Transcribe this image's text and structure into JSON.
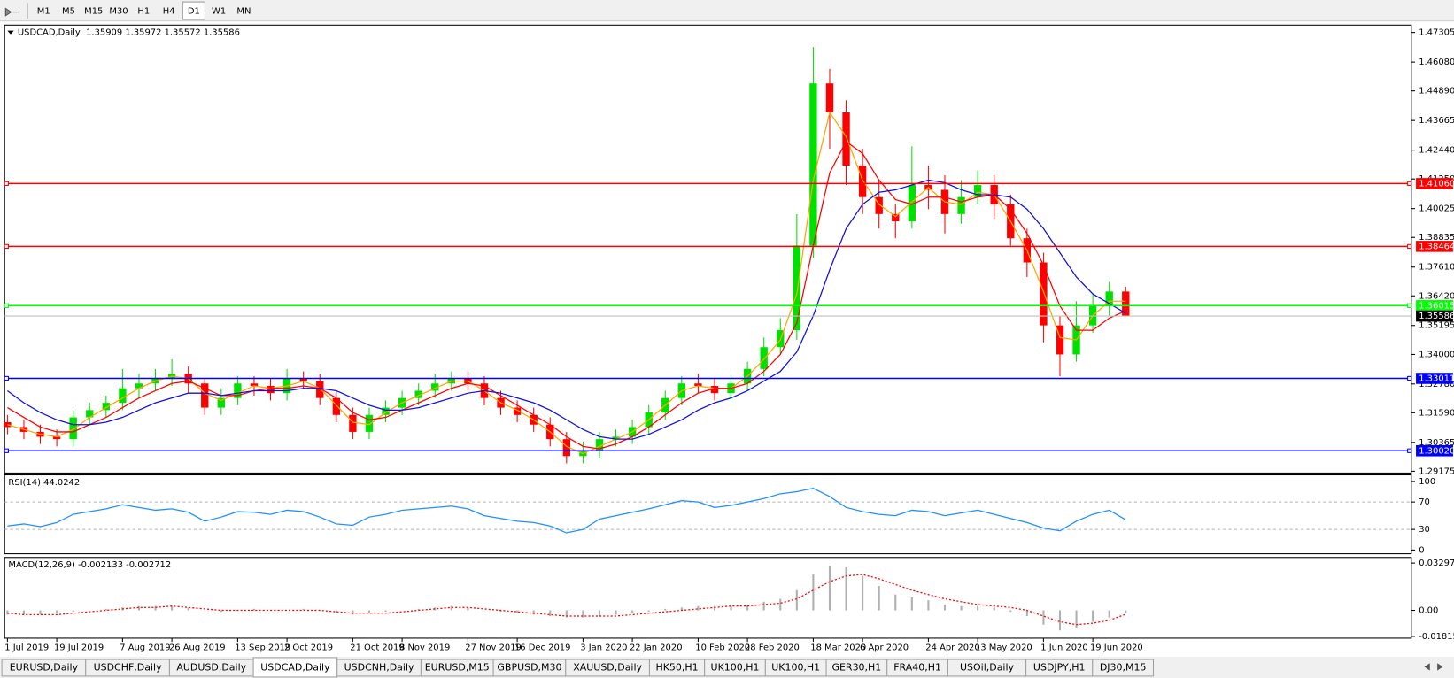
{
  "toolbar": {
    "timeframes": [
      "M1",
      "M5",
      "M15",
      "M30",
      "H1",
      "H4",
      "D1",
      "W1",
      "MN"
    ],
    "active_index": 6
  },
  "tabs": [
    "EURUSD,Daily",
    "USDCHF,Daily",
    "AUDUSD,Daily",
    "USDCAD,Daily",
    "USDCNH,Daily",
    "EURUSD,M15",
    "GBPUSD,M30",
    "XAUUSD,Daily",
    "HK50,H1",
    "UK100,H1",
    "UK100,H1",
    "GER30,H1",
    "FRA40,H1",
    "USOil,Daily",
    "USDJPY,H1",
    "DJ30,M15"
  ],
  "active_tab_index": 3,
  "chart_data": [
    {
      "type": "candlestick",
      "title": "USDCAD,Daily  1.35909 1.35972 1.35572 1.35586",
      "categories": [
        "1 Jul 2019",
        null,
        null,
        "19 Jul 2019",
        null,
        null,
        null,
        "7 Aug 2019",
        null,
        null,
        "26 Aug 2019",
        null,
        null,
        null,
        "13 Sep 2019",
        null,
        null,
        "2 Oct 2019",
        null,
        null,
        null,
        "21 Oct 2019",
        null,
        null,
        "8 Nov 2019",
        null,
        null,
        null,
        "27 Nov 2019",
        null,
        null,
        "16 Dec 2019",
        null,
        null,
        null,
        "3 Jan 2020",
        null,
        null,
        "22 Jan 2020",
        null,
        null,
        null,
        "10 Feb 2020",
        null,
        null,
        "28 Feb 2020",
        null,
        null,
        null,
        "18 Mar 2020",
        null,
        null,
        "6 Apr 2020",
        null,
        null,
        null,
        "24 Apr 2020",
        null,
        null,
        "13 May 2020",
        null,
        null,
        null,
        "1 Jun 2020",
        null,
        null,
        "19 Jun 2020",
        null,
        null
      ],
      "open": [
        1.312,
        1.31,
        1.308,
        1.306,
        1.305,
        1.314,
        1.317,
        1.32,
        1.326,
        1.328,
        1.33,
        1.332,
        1.328,
        1.318,
        1.322,
        1.328,
        1.327,
        1.324,
        1.33,
        1.329,
        1.322,
        1.315,
        1.308,
        1.315,
        1.318,
        1.322,
        1.325,
        1.328,
        1.33,
        1.328,
        1.322,
        1.318,
        1.315,
        1.311,
        1.305,
        1.298,
        1.3,
        1.305,
        1.306,
        1.31,
        1.316,
        1.322,
        1.328,
        1.327,
        1.324,
        1.328,
        1.334,
        1.343,
        1.35,
        1.385,
        1.452,
        1.44,
        1.418,
        1.405,
        1.398,
        1.395,
        1.41,
        1.408,
        1.398,
        1.405,
        1.41,
        1.402,
        1.388,
        1.378,
        1.352,
        1.34,
        1.352,
        1.36,
        1.366
      ],
      "high": [
        1.315,
        1.313,
        1.311,
        1.309,
        1.317,
        1.32,
        1.323,
        1.334,
        1.332,
        1.334,
        1.338,
        1.335,
        1.33,
        1.326,
        1.331,
        1.331,
        1.33,
        1.334,
        1.333,
        1.332,
        1.325,
        1.318,
        1.318,
        1.321,
        1.325,
        1.328,
        1.332,
        1.333,
        1.333,
        1.331,
        1.325,
        1.321,
        1.318,
        1.314,
        1.308,
        1.304,
        1.308,
        1.309,
        1.313,
        1.319,
        1.325,
        1.331,
        1.332,
        1.33,
        1.331,
        1.337,
        1.347,
        1.355,
        1.398,
        1.467,
        1.458,
        1.445,
        1.425,
        1.412,
        1.402,
        1.426,
        1.418,
        1.414,
        1.412,
        1.416,
        1.414,
        1.406,
        1.392,
        1.382,
        1.356,
        1.362,
        1.365,
        1.37,
        1.368
      ],
      "low": [
        1.307,
        1.305,
        1.303,
        1.302,
        1.302,
        1.311,
        1.314,
        1.317,
        1.322,
        1.325,
        1.327,
        1.324,
        1.315,
        1.315,
        1.319,
        1.323,
        1.321,
        1.321,
        1.326,
        1.319,
        1.312,
        1.305,
        1.305,
        1.312,
        1.315,
        1.319,
        1.322,
        1.325,
        1.325,
        1.319,
        1.315,
        1.312,
        1.308,
        1.302,
        1.295,
        1.295,
        1.297,
        1.302,
        1.303,
        1.307,
        1.313,
        1.319,
        1.324,
        1.321,
        1.321,
        1.325,
        1.331,
        1.34,
        1.346,
        1.38,
        1.425,
        1.41,
        1.398,
        1.392,
        1.388,
        1.392,
        1.4,
        1.39,
        1.394,
        1.402,
        1.396,
        1.385,
        1.372,
        1.345,
        1.331,
        1.337,
        1.349,
        1.356,
        1.35572
      ],
      "close": [
        1.31,
        1.308,
        1.306,
        1.305,
        1.314,
        1.317,
        1.32,
        1.326,
        1.328,
        1.33,
        1.332,
        1.328,
        1.318,
        1.322,
        1.328,
        1.327,
        1.324,
        1.33,
        1.329,
        1.322,
        1.315,
        1.308,
        1.315,
        1.318,
        1.322,
        1.325,
        1.328,
        1.33,
        1.328,
        1.322,
        1.318,
        1.315,
        1.311,
        1.305,
        1.298,
        1.3,
        1.305,
        1.306,
        1.31,
        1.316,
        1.322,
        1.328,
        1.327,
        1.324,
        1.328,
        1.334,
        1.343,
        1.35,
        1.385,
        1.452,
        1.44,
        1.418,
        1.405,
        1.398,
        1.395,
        1.41,
        1.408,
        1.398,
        1.405,
        1.41,
        1.402,
        1.388,
        1.378,
        1.352,
        1.34,
        1.352,
        1.36,
        1.366,
        1.35586
      ],
      "up_color": "#00e000",
      "down_color": "#ff0000",
      "series": [
        {
          "color": "#ffa500",
          "values": [
            1.311,
            1.309,
            1.307,
            1.306,
            1.309,
            1.314,
            1.318,
            1.322,
            1.326,
            1.329,
            1.331,
            1.33,
            1.324,
            1.321,
            1.324,
            1.327,
            1.326,
            1.327,
            1.329,
            1.326,
            1.319,
            1.312,
            1.311,
            1.316,
            1.32,
            1.323,
            1.326,
            1.329,
            1.329,
            1.325,
            1.32,
            1.317,
            1.313,
            1.308,
            1.302,
            1.299,
            1.302,
            1.305,
            1.308,
            1.313,
            1.319,
            1.325,
            1.327,
            1.326,
            1.326,
            1.331,
            1.338,
            1.346,
            1.365,
            1.412,
            1.44,
            1.43,
            1.412,
            1.402,
            1.397,
            1.403,
            1.409,
            1.403,
            1.402,
            1.407,
            1.406,
            1.395,
            1.383,
            1.366,
            1.347,
            1.346,
            1.356,
            1.362,
            1.362
          ]
        },
        {
          "color": "#ff0000",
          "values": [
            1.318,
            1.314,
            1.31,
            1.308,
            1.308,
            1.311,
            1.314,
            1.318,
            1.322,
            1.325,
            1.328,
            1.329,
            1.326,
            1.323,
            1.323,
            1.325,
            1.326,
            1.326,
            1.327,
            1.326,
            1.322,
            1.316,
            1.313,
            1.314,
            1.317,
            1.32,
            1.323,
            1.326,
            1.328,
            1.327,
            1.323,
            1.319,
            1.315,
            1.311,
            1.306,
            1.302,
            1.301,
            1.303,
            1.306,
            1.31,
            1.315,
            1.32,
            1.324,
            1.326,
            1.326,
            1.328,
            1.333,
            1.34,
            1.353,
            1.385,
            1.415,
            1.428,
            1.423,
            1.412,
            1.404,
            1.402,
            1.405,
            1.405,
            1.403,
            1.405,
            1.406,
            1.4,
            1.39,
            1.377,
            1.36,
            1.35,
            1.35,
            1.355,
            1.358
          ]
        },
        {
          "color": "#1010e0",
          "values": [
            1.325,
            1.32,
            1.316,
            1.313,
            1.311,
            1.311,
            1.312,
            1.314,
            1.317,
            1.32,
            1.322,
            1.324,
            1.324,
            1.323,
            1.324,
            1.325,
            1.325,
            1.325,
            1.326,
            1.326,
            1.325,
            1.322,
            1.319,
            1.317,
            1.317,
            1.318,
            1.32,
            1.322,
            1.324,
            1.325,
            1.324,
            1.322,
            1.32,
            1.317,
            1.313,
            1.309,
            1.306,
            1.305,
            1.305,
            1.307,
            1.31,
            1.313,
            1.317,
            1.32,
            1.322,
            1.325,
            1.329,
            1.333,
            1.341,
            1.356,
            1.375,
            1.392,
            1.402,
            1.407,
            1.408,
            1.41,
            1.412,
            1.411,
            1.408,
            1.406,
            1.406,
            1.405,
            1.4,
            1.392,
            1.382,
            1.372,
            1.365,
            1.361,
            1.357
          ]
        }
      ],
      "ylim": [
        1.291,
        1.4761
      ],
      "yticks": [
        1.47305,
        {
          "value": 1.4608,
          "label": "1.46080"
        },
        {
          "value": 1.4489,
          "label": "1.44890"
        },
        1.43665,
        {
          "value": 1.4244,
          "label": "1.42440"
        },
        {
          "value": 1.4125,
          "label": "1.41250"
        },
        1.40025,
        1.38835,
        {
          "value": 1.3761,
          "label": "1.37610"
        },
        {
          "value": 1.3642,
          "label": "1.36420"
        },
        1.35195,
        {
          "value": 1.34,
          "label": "1.34000"
        },
        {
          "value": 1.3278,
          "label": "1.32780"
        },
        {
          "value": 1.3159,
          "label": "1.31590"
        },
        1.30365,
        1.29175
      ],
      "hlines": [
        {
          "value": 1.4106,
          "label": "1.41060",
          "color": "#ff0000"
        },
        {
          "value": 1.38464,
          "label": "1.38464",
          "color": "#ff0000"
        },
        {
          "value": 1.36015,
          "label": "1.36015",
          "color": "#00ff00"
        },
        {
          "value": 1.33011,
          "label": "1.33011",
          "color": "#0000ff"
        },
        {
          "value": 1.3002,
          "label": "1.30020",
          "color": "#0000ff"
        }
      ],
      "last": {
        "value": 1.35586,
        "color": "#c0c0c0"
      }
    },
    {
      "type": "line",
      "title": "RSI(14) 44.0242",
      "series": [
        {
          "color": "#1e90ff",
          "values": [
            35,
            38,
            34,
            40,
            52,
            56,
            60,
            66,
            62,
            58,
            60,
            55,
            42,
            48,
            56,
            55,
            52,
            58,
            56,
            48,
            38,
            36,
            48,
            52,
            58,
            60,
            62,
            64,
            60,
            50,
            46,
            42,
            40,
            35,
            25,
            30,
            45,
            50,
            55,
            60,
            66,
            72,
            70,
            62,
            65,
            70,
            75,
            82,
            85,
            90,
            78,
            62,
            56,
            52,
            50,
            58,
            56,
            50,
            54,
            58,
            52,
            46,
            40,
            32,
            28,
            42,
            52,
            58,
            44.0242
          ]
        }
      ],
      "ylim": [
        -5.4,
        109.5
      ],
      "yticks": [
        100,
        70,
        30,
        0
      ],
      "levels": [
        70,
        30
      ]
    },
    {
      "type": "bar",
      "title": "MACD(12,26,9) -0.002133 -0.002712",
      "series": [
        {
          "type": "bar",
          "color": "#b0b0b0",
          "values": [
            -0.003,
            -0.003,
            -0.003,
            -0.002,
            -0.001,
            0.0,
            0.001,
            0.002,
            0.003,
            0.003,
            0.003,
            0.002,
            0.0,
            -0.001,
            0.0,
            0.001,
            0.0,
            0.0,
            0.001,
            0.0,
            -0.002,
            -0.003,
            -0.002,
            -0.001,
            0.0,
            0.001,
            0.002,
            0.003,
            0.002,
            0.0,
            -0.001,
            -0.002,
            -0.003,
            -0.004,
            -0.005,
            -0.005,
            -0.004,
            -0.003,
            -0.002,
            -0.001,
            0.001,
            0.002,
            0.003,
            0.003,
            0.003,
            0.004,
            0.006,
            0.008,
            0.014,
            0.025,
            0.031,
            0.03,
            0.024,
            0.017,
            0.011,
            0.009,
            0.007,
            0.004,
            0.003,
            0.003,
            0.002,
            -0.001,
            -0.004,
            -0.01,
            -0.014,
            -0.012,
            -0.008,
            -0.005,
            -0.002133
          ]
        },
        {
          "type": "line",
          "color": "#ff0000",
          "dashed": true,
          "values": [
            -0.002,
            -0.003,
            -0.003,
            -0.003,
            -0.002,
            -0.001,
            0.0,
            0.001,
            0.002,
            0.002,
            0.003,
            0.002,
            0.001,
            0.0,
            0.0,
            0.0,
            0.0,
            0.0,
            0.0,
            0.0,
            -0.001,
            -0.002,
            -0.002,
            -0.002,
            -0.001,
            0.0,
            0.001,
            0.002,
            0.002,
            0.001,
            0.0,
            -0.001,
            -0.002,
            -0.003,
            -0.004,
            -0.004,
            -0.004,
            -0.004,
            -0.003,
            -0.002,
            -0.001,
            0.0,
            0.001,
            0.002,
            0.003,
            0.003,
            0.004,
            0.005,
            0.008,
            0.014,
            0.02,
            0.024,
            0.025,
            0.022,
            0.018,
            0.014,
            0.011,
            0.008,
            0.006,
            0.004,
            0.003,
            0.002,
            0.0,
            -0.004,
            -0.008,
            -0.01,
            -0.009,
            -0.007,
            -0.002712
          ]
        }
      ],
      "ylim": [
        -0.0194,
        0.0369
      ],
      "yticks": [
        0.032972,
        {
          "value": 0,
          "label": "0.00"
        },
        -0.018154
      ]
    }
  ]
}
